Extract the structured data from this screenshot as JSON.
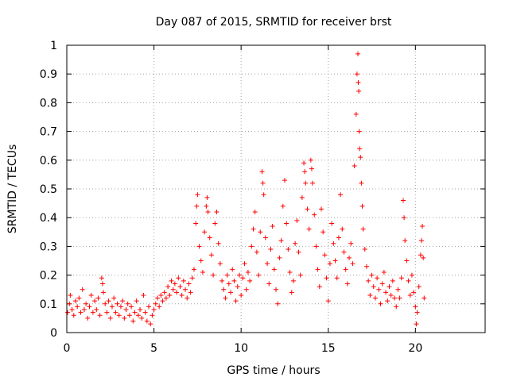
{
  "chart_data": {
    "type": "scatter",
    "title": "Day 087 of 2015, SRMTID for receiver brst",
    "xlabel": "GPS time / hours",
    "ylabel": "SRMTID / TECUs",
    "xlim": [
      0,
      24
    ],
    "ylim": [
      0,
      1
    ],
    "xticks": [
      0,
      5,
      10,
      15,
      20
    ],
    "xtick_labels": [
      "0",
      "5",
      "10",
      "15",
      "20"
    ],
    "yticks": [
      0,
      0.1,
      0.2,
      0.3,
      0.4,
      0.5,
      0.6,
      0.7,
      0.8,
      0.9,
      1
    ],
    "ytick_labels": [
      "0",
      "0.1",
      "0.2",
      "0.3",
      "0.4",
      "0.5",
      "0.6",
      "0.7",
      "0.8",
      "0.9",
      "1"
    ],
    "grid": true,
    "marker": "+",
    "color": "#ff0000",
    "series": [
      {
        "name": "SRMTID",
        "points": [
          [
            0.05,
            0.07
          ],
          [
            0.15,
            0.1
          ],
          [
            0.2,
            0.13
          ],
          [
            0.3,
            0.08
          ],
          [
            0.4,
            0.06
          ],
          [
            0.5,
            0.11
          ],
          [
            0.6,
            0.09
          ],
          [
            0.7,
            0.12
          ],
          [
            0.8,
            0.07
          ],
          [
            0.9,
            0.15
          ],
          [
            1.0,
            0.08
          ],
          [
            1.1,
            0.1
          ],
          [
            1.2,
            0.05
          ],
          [
            1.3,
            0.09
          ],
          [
            1.4,
            0.13
          ],
          [
            1.5,
            0.07
          ],
          [
            1.6,
            0.11
          ],
          [
            1.7,
            0.08
          ],
          [
            1.8,
            0.12
          ],
          [
            1.9,
            0.06
          ],
          [
            2.0,
            0.19
          ],
          [
            2.05,
            0.17
          ],
          [
            2.1,
            0.14
          ],
          [
            2.2,
            0.1
          ],
          [
            2.3,
            0.07
          ],
          [
            2.4,
            0.11
          ],
          [
            2.5,
            0.05
          ],
          [
            2.6,
            0.09
          ],
          [
            2.7,
            0.12
          ],
          [
            2.8,
            0.07
          ],
          [
            2.9,
            0.1
          ],
          [
            3.0,
            0.06
          ],
          [
            3.1,
            0.09
          ],
          [
            3.2,
            0.11
          ],
          [
            3.3,
            0.05
          ],
          [
            3.4,
            0.08
          ],
          [
            3.5,
            0.1
          ],
          [
            3.6,
            0.06
          ],
          [
            3.7,
            0.09
          ],
          [
            3.8,
            0.04
          ],
          [
            3.9,
            0.07
          ],
          [
            4.0,
            0.11
          ],
          [
            4.1,
            0.06
          ],
          [
            4.2,
            0.08
          ],
          [
            4.3,
            0.05
          ],
          [
            4.4,
            0.13
          ],
          [
            4.5,
            0.07
          ],
          [
            4.6,
            0.04
          ],
          [
            4.7,
            0.09
          ],
          [
            4.8,
            0.03
          ],
          [
            4.9,
            0.06
          ],
          [
            5.0,
            0.08
          ],
          [
            5.1,
            0.1
          ],
          [
            5.2,
            0.12
          ],
          [
            5.3,
            0.09
          ],
          [
            5.4,
            0.13
          ],
          [
            5.5,
            0.11
          ],
          [
            5.6,
            0.14
          ],
          [
            5.7,
            0.12
          ],
          [
            5.8,
            0.16
          ],
          [
            5.9,
            0.13
          ],
          [
            6.0,
            0.18
          ],
          [
            6.1,
            0.15
          ],
          [
            6.2,
            0.17
          ],
          [
            6.3,
            0.14
          ],
          [
            6.4,
            0.19
          ],
          [
            6.5,
            0.16
          ],
          [
            6.6,
            0.13
          ],
          [
            6.7,
            0.18
          ],
          [
            6.8,
            0.15
          ],
          [
            6.9,
            0.12
          ],
          [
            7.0,
            0.17
          ],
          [
            7.1,
            0.14
          ],
          [
            7.2,
            0.19
          ],
          [
            7.3,
            0.22
          ],
          [
            7.4,
            0.38
          ],
          [
            7.45,
            0.44
          ],
          [
            7.5,
            0.48
          ],
          [
            7.6,
            0.3
          ],
          [
            7.7,
            0.25
          ],
          [
            7.8,
            0.21
          ],
          [
            7.9,
            0.35
          ],
          [
            8.0,
            0.44
          ],
          [
            8.05,
            0.47
          ],
          [
            8.1,
            0.42
          ],
          [
            8.2,
            0.33
          ],
          [
            8.3,
            0.27
          ],
          [
            8.4,
            0.2
          ],
          [
            8.5,
            0.38
          ],
          [
            8.6,
            0.42
          ],
          [
            8.7,
            0.31
          ],
          [
            8.8,
            0.24
          ],
          [
            8.9,
            0.18
          ],
          [
            9.0,
            0.15
          ],
          [
            9.1,
            0.12
          ],
          [
            9.2,
            0.2
          ],
          [
            9.3,
            0.17
          ],
          [
            9.4,
            0.14
          ],
          [
            9.5,
            0.22
          ],
          [
            9.6,
            0.18
          ],
          [
            9.7,
            0.11
          ],
          [
            9.8,
            0.16
          ],
          [
            9.9,
            0.2
          ],
          [
            10.0,
            0.13
          ],
          [
            10.1,
            0.19
          ],
          [
            10.2,
            0.24
          ],
          [
            10.3,
            0.15
          ],
          [
            10.4,
            0.21
          ],
          [
            10.5,
            0.18
          ],
          [
            10.6,
            0.3
          ],
          [
            10.7,
            0.36
          ],
          [
            10.8,
            0.42
          ],
          [
            10.9,
            0.28
          ],
          [
            11.0,
            0.2
          ],
          [
            11.1,
            0.35
          ],
          [
            11.2,
            0.56
          ],
          [
            11.25,
            0.52
          ],
          [
            11.3,
            0.48
          ],
          [
            11.4,
            0.33
          ],
          [
            11.5,
            0.24
          ],
          [
            11.6,
            0.17
          ],
          [
            11.7,
            0.29
          ],
          [
            11.8,
            0.37
          ],
          [
            11.9,
            0.22
          ],
          [
            12.0,
            0.15
          ],
          [
            12.1,
            0.1
          ],
          [
            12.2,
            0.26
          ],
          [
            12.3,
            0.32
          ],
          [
            12.4,
            0.44
          ],
          [
            12.5,
            0.53
          ],
          [
            12.6,
            0.38
          ],
          [
            12.7,
            0.29
          ],
          [
            12.8,
            0.21
          ],
          [
            12.9,
            0.14
          ],
          [
            13.0,
            0.18
          ],
          [
            13.1,
            0.31
          ],
          [
            13.2,
            0.39
          ],
          [
            13.3,
            0.28
          ],
          [
            13.4,
            0.2
          ],
          [
            13.5,
            0.47
          ],
          [
            13.6,
            0.59
          ],
          [
            13.65,
            0.56
          ],
          [
            13.7,
            0.52
          ],
          [
            13.8,
            0.43
          ],
          [
            13.9,
            0.36
          ],
          [
            14.0,
            0.6
          ],
          [
            14.05,
            0.57
          ],
          [
            14.1,
            0.52
          ],
          [
            14.2,
            0.41
          ],
          [
            14.3,
            0.3
          ],
          [
            14.4,
            0.22
          ],
          [
            14.5,
            0.16
          ],
          [
            14.6,
            0.43
          ],
          [
            14.7,
            0.35
          ],
          [
            14.8,
            0.27
          ],
          [
            14.9,
            0.19
          ],
          [
            15.0,
            0.11
          ],
          [
            15.1,
            0.24
          ],
          [
            15.2,
            0.38
          ],
          [
            15.3,
            0.31
          ],
          [
            15.4,
            0.25
          ],
          [
            15.5,
            0.19
          ],
          [
            15.6,
            0.33
          ],
          [
            15.7,
            0.48
          ],
          [
            15.8,
            0.36
          ],
          [
            15.9,
            0.28
          ],
          [
            16.0,
            0.22
          ],
          [
            16.1,
            0.17
          ],
          [
            16.2,
            0.26
          ],
          [
            16.3,
            0.31
          ],
          [
            16.4,
            0.24
          ],
          [
            16.5,
            0.58
          ],
          [
            16.6,
            0.76
          ],
          [
            16.65,
            0.9
          ],
          [
            16.7,
            0.97
          ],
          [
            16.72,
            0.87
          ],
          [
            16.75,
            0.84
          ],
          [
            16.78,
            0.7
          ],
          [
            16.8,
            0.64
          ],
          [
            16.85,
            0.61
          ],
          [
            16.9,
            0.52
          ],
          [
            16.95,
            0.44
          ],
          [
            17.0,
            0.36
          ],
          [
            17.1,
            0.29
          ],
          [
            17.2,
            0.23
          ],
          [
            17.3,
            0.18
          ],
          [
            17.4,
            0.13
          ],
          [
            17.5,
            0.2
          ],
          [
            17.6,
            0.16
          ],
          [
            17.7,
            0.12
          ],
          [
            17.8,
            0.19
          ],
          [
            17.9,
            0.15
          ],
          [
            18.0,
            0.1
          ],
          [
            18.1,
            0.17
          ],
          [
            18.2,
            0.21
          ],
          [
            18.3,
            0.14
          ],
          [
            18.4,
            0.11
          ],
          [
            18.5,
            0.16
          ],
          [
            18.6,
            0.13
          ],
          [
            18.7,
            0.18
          ],
          [
            18.8,
            0.12
          ],
          [
            18.9,
            0.09
          ],
          [
            19.0,
            0.15
          ],
          [
            19.1,
            0.12
          ],
          [
            19.2,
            0.19
          ],
          [
            19.3,
            0.46
          ],
          [
            19.35,
            0.4
          ],
          [
            19.4,
            0.32
          ],
          [
            19.5,
            0.25
          ],
          [
            19.6,
            0.18
          ],
          [
            19.7,
            0.13
          ],
          [
            19.8,
            0.2
          ],
          [
            19.9,
            0.14
          ],
          [
            20.0,
            0.09
          ],
          [
            20.05,
            0.03
          ],
          [
            20.1,
            0.07
          ],
          [
            20.2,
            0.16
          ],
          [
            20.3,
            0.27
          ],
          [
            20.35,
            0.32
          ],
          [
            20.4,
            0.37
          ],
          [
            20.45,
            0.26
          ],
          [
            20.5,
            0.12
          ]
        ]
      }
    ]
  }
}
